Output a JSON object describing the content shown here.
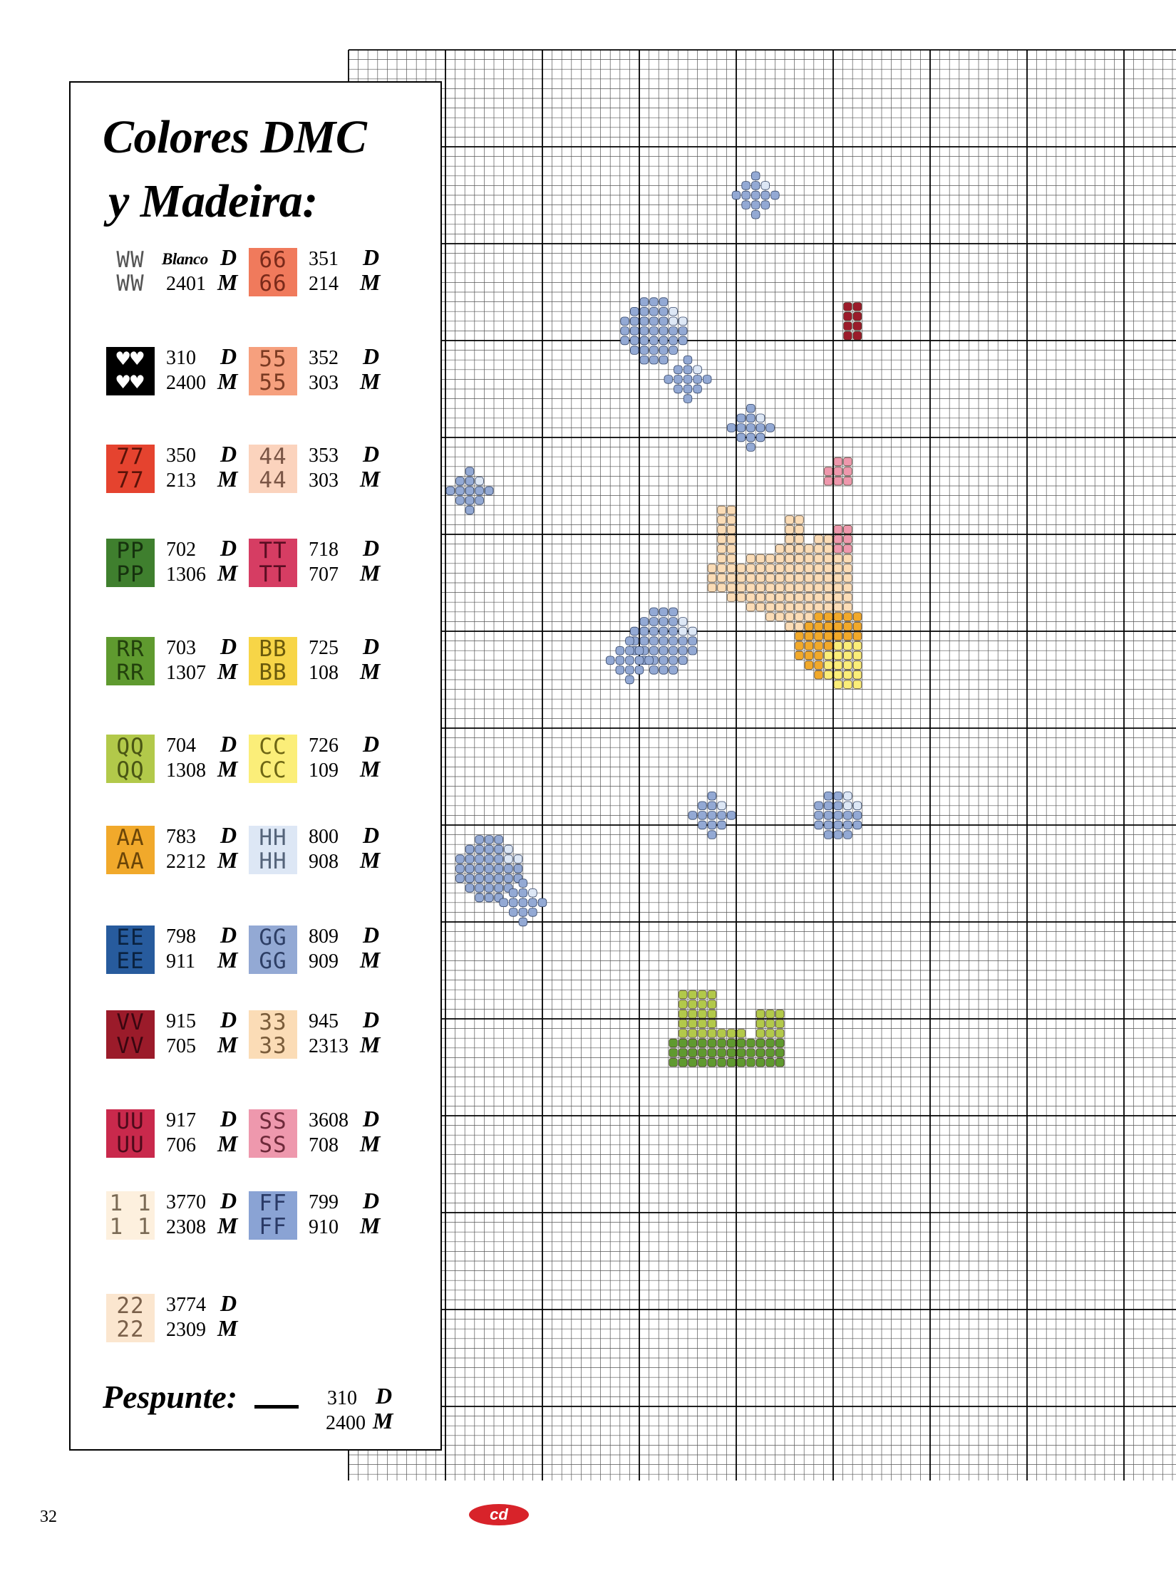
{
  "legend": {
    "title_line1": "Colores DMC",
    "title_line2": "y Madeira:",
    "entries": [
      {
        "symbol": "WW\nWW",
        "color": "#ffffff",
        "fg": "#555555",
        "dmc": "Blanco",
        "madeira": "2401"
      },
      {
        "symbol": "66\n66",
        "color": "#f07a5c",
        "fg": "#7a2a1a",
        "dmc": "351",
        "madeira": "214"
      },
      {
        "symbol": "♥♥\n♥♥",
        "color": "#000000",
        "fg": "#ffffff",
        "dmc": "310",
        "madeira": "2400"
      },
      {
        "symbol": "55\n55",
        "color": "#f6a07e",
        "fg": "#7a3a22",
        "dmc": "352",
        "madeira": "303"
      },
      {
        "symbol": "77\n77",
        "color": "#e5432f",
        "fg": "#5a1208",
        "dmc": "350",
        "madeira": "213"
      },
      {
        "symbol": "44\n44",
        "color": "#fbd3bd",
        "fg": "#7a5545",
        "dmc": "353",
        "madeira": "303"
      },
      {
        "symbol": "PP\nPP",
        "color": "#3f7f2e",
        "fg": "#16320e",
        "dmc": "702",
        "madeira": "1306"
      },
      {
        "symbol": "TT\nTT",
        "color": "#d63d63",
        "fg": "#5a0d22",
        "dmc": "718",
        "madeira": "707"
      },
      {
        "symbol": "RR\nRR",
        "color": "#5f9a2f",
        "fg": "#22400c",
        "dmc": "703",
        "madeira": "1307"
      },
      {
        "symbol": "BB\nBB",
        "color": "#f7d547",
        "fg": "#6b5a0c",
        "dmc": "725",
        "madeira": "108"
      },
      {
        "symbol": "QQ\nQQ",
        "color": "#b2c94a",
        "fg": "#4a5614",
        "dmc": "704",
        "madeira": "1308"
      },
      {
        "symbol": "CC\nCC",
        "color": "#fbee79",
        "fg": "#6e6614",
        "dmc": "726",
        "madeira": "109"
      },
      {
        "symbol": "AA\nAA",
        "color": "#f1a92b",
        "fg": "#6b4508",
        "dmc": "783",
        "madeira": "2212"
      },
      {
        "symbol": "HH\nHH",
        "color": "#dde7f5",
        "fg": "#55647a",
        "dmc": "800",
        "madeira": "908"
      },
      {
        "symbol": "EE\nEE",
        "color": "#275b9d",
        "fg": "#0a2240",
        "dmc": "798",
        "madeira": "911"
      },
      {
        "symbol": "GG\nGG",
        "color": "#93a9d4",
        "fg": "#2e3f66",
        "dmc": "809",
        "madeira": "909"
      },
      {
        "symbol": "VV\nVV",
        "color": "#9b1b2a",
        "fg": "#3a0610",
        "dmc": "915",
        "madeira": "705"
      },
      {
        "symbol": "33\n33",
        "color": "#fbdcb6",
        "fg": "#7a5c3a",
        "dmc": "945",
        "madeira": "2313"
      },
      {
        "symbol": "UU\nUU",
        "color": "#c9294c",
        "fg": "#4e0a1a",
        "dmc": "917",
        "madeira": "706"
      },
      {
        "symbol": "SS\nSS",
        "color": "#ee98ad",
        "fg": "#6e2a3a",
        "dmc": "3608",
        "madeira": "708"
      },
      {
        "symbol": "1 1\n1 1",
        "color": "#fdf0de",
        "fg": "#7a6a55",
        "dmc": "3770",
        "madeira": "2308"
      },
      {
        "symbol": "FF\nFF",
        "color": "#8aa3d4",
        "fg": "#2a3a66",
        "dmc": "799",
        "madeira": "910"
      },
      {
        "symbol": "22\n22",
        "color": "#fbe6cf",
        "fg": "#7a604a",
        "dmc": "3774",
        "madeira": "2309"
      }
    ],
    "brand_d": "D",
    "brand_m": "M",
    "pespunte_label": "Pespunte:",
    "pespunte_dmc": "310",
    "pespunte_madeira": "2400"
  },
  "footer": {
    "page_number": "32",
    "logo_text": "cd"
  },
  "chart_colors": {
    "grid_fine": "#555555",
    "grid_major": "#000000",
    "bubble": "#93a9d4",
    "bubble_light": "#dde7f5",
    "snail_body": "#fbdcb6",
    "snail_shell": "#f1a92b",
    "snail_shell_light": "#fbee79",
    "plant": "#5f9a2f",
    "plant_light": "#b2c94a",
    "pink": "#ee98ad",
    "red": "#9b1b2a"
  }
}
